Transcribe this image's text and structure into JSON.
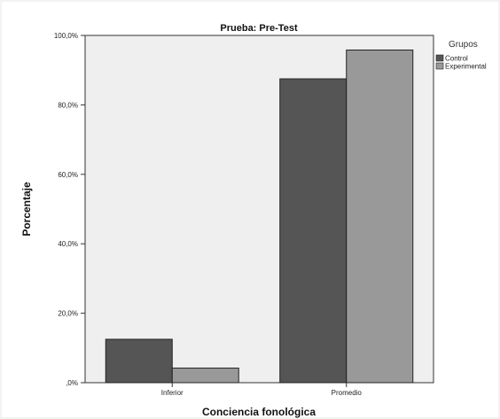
{
  "chart_data": {
    "type": "bar",
    "title": "Prueba: Pre-Test",
    "xlabel": "Conciencia fonológica",
    "ylabel": "Porcentaje",
    "categories": [
      "Inferior",
      "Promedio"
    ],
    "series": [
      {
        "name": "Control",
        "values": [
          12.5,
          87.5
        ],
        "color": "#555555"
      },
      {
        "name": "Experimental",
        "values": [
          4.2,
          95.8
        ],
        "color": "#999999"
      }
    ],
    "ylim": [
      0,
      100
    ],
    "yticks": [
      {
        "value": 0,
        "label": ",0%"
      },
      {
        "value": 20,
        "label": "20,0%"
      },
      {
        "value": 40,
        "label": "40,0%"
      },
      {
        "value": 60,
        "label": "60,0%"
      },
      {
        "value": 80,
        "label": "80,0%"
      },
      {
        "value": 100,
        "label": "100,0%"
      }
    ],
    "legend": {
      "title": "Grupos",
      "placement": "right"
    },
    "grid": false,
    "plot_background": "#efefef"
  }
}
